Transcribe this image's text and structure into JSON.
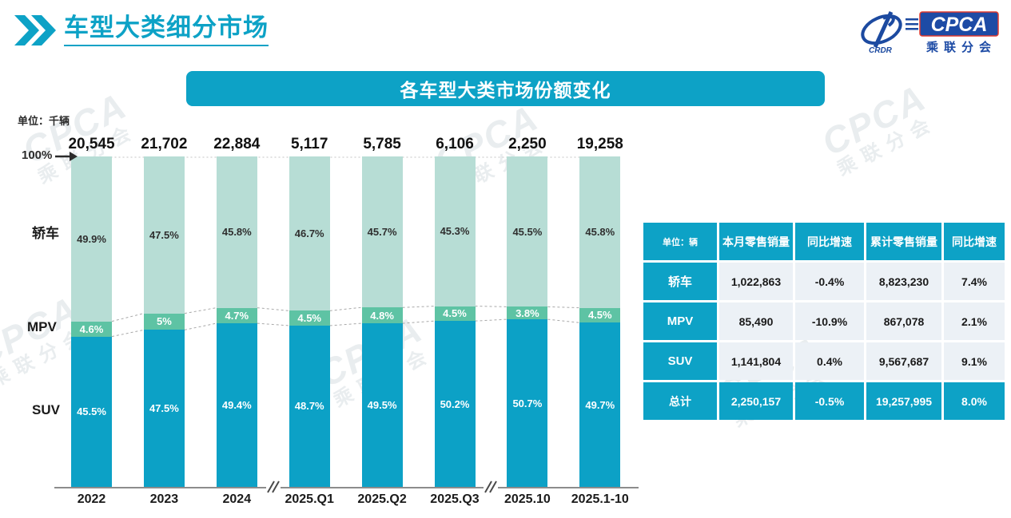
{
  "header": {
    "title": "车型大类细分市场"
  },
  "logo": {
    "name": "CPCA",
    "subtitle": "乘联分会",
    "mark": "CRDR"
  },
  "banner": {
    "title": "各车型大类市场份额变化"
  },
  "watermark": {
    "text": "CPCA",
    "sub": "乘联分会"
  },
  "chart_data": [
    {
      "type": "bar",
      "stacked": true,
      "title": "各车型大类市场份额变化",
      "unit_label": "单位：千辆",
      "y_axis_label": "100%",
      "ylim": [
        0,
        100
      ],
      "grid": false,
      "categories": [
        "2022",
        "2023",
        "2024",
        "2025.Q1",
        "2025.Q2",
        "2025.Q3",
        "2025.10",
        "2025.1-10"
      ],
      "totals": [
        "20,545",
        "21,702",
        "22,884",
        "5,117",
        "5,785",
        "6,106",
        "2,250",
        "19,258"
      ],
      "axis_breaks_after": [
        "2024",
        "2025.Q3"
      ],
      "series": [
        {
          "name": "轿车",
          "unit": "%",
          "color": "#b7ddd5",
          "label_color": "#2f2f2f",
          "values": [
            49.9,
            47.5,
            45.8,
            46.7,
            45.7,
            45.3,
            45.5,
            45.8
          ]
        },
        {
          "name": "MPV",
          "unit": "%",
          "color": "#5ec3a4",
          "label_color": "#ffffff",
          "values": [
            4.6,
            5.0,
            4.7,
            4.5,
            4.8,
            4.5,
            3.8,
            4.5
          ]
        },
        {
          "name": "SUV",
          "unit": "%",
          "color": "#0ca1c6",
          "label_color": "#ffffff",
          "values": [
            45.5,
            47.5,
            49.4,
            48.7,
            49.5,
            50.2,
            50.7,
            49.7
          ]
        }
      ]
    },
    {
      "type": "table",
      "unit_header": "单位：辆",
      "headers": [
        "本月零售销量",
        "同比增速",
        "累计零售销量",
        "同比增速"
      ],
      "rows": [
        {
          "label": "轿车",
          "cells": [
            "1,022,863",
            "-0.4%",
            "8,823,230",
            "7.4%"
          ],
          "total": false
        },
        {
          "label": "MPV",
          "cells": [
            "85,490",
            "-10.9%",
            "867,078",
            "2.1%"
          ],
          "total": false
        },
        {
          "label": "SUV",
          "cells": [
            "1,141,804",
            "0.4%",
            "9,567,687",
            "9.1%"
          ],
          "total": false
        },
        {
          "label": "总计",
          "cells": [
            "2,250,157",
            "-0.5%",
            "19,257,995",
            "8.0%"
          ],
          "total": true
        }
      ]
    }
  ]
}
